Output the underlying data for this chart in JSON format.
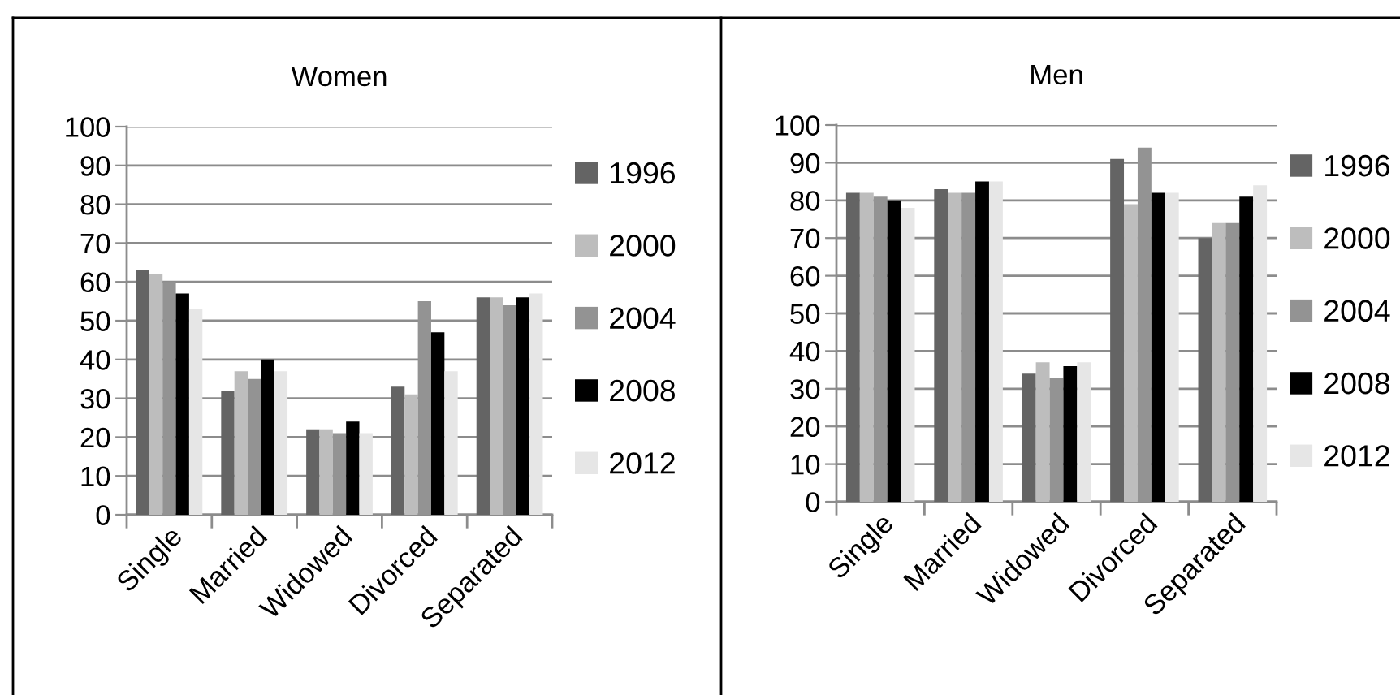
{
  "chart_data": [
    {
      "type": "bar",
      "title": "Women",
      "categories": [
        "Single",
        "Married",
        "Widowed",
        "Divorced",
        "Separated"
      ],
      "series": [
        {
          "name": "1996",
          "color": "#646464",
          "values": [
            63,
            32,
            22,
            33,
            56
          ]
        },
        {
          "name": "2000",
          "color": "#bdbdbd",
          "values": [
            62,
            37,
            22,
            31,
            56
          ]
        },
        {
          "name": "2004",
          "color": "#939393",
          "values": [
            60,
            35,
            21,
            55,
            54
          ]
        },
        {
          "name": "2008",
          "color": "#000000",
          "values": [
            57,
            40,
            24,
            47,
            56
          ]
        },
        {
          "name": "2012",
          "color": "#e6e6e6",
          "values": [
            53,
            37,
            21,
            37,
            57
          ]
        }
      ],
      "ylim": [
        0,
        100
      ],
      "yticks": [
        0,
        10,
        20,
        30,
        40,
        50,
        60,
        70,
        80,
        90,
        100
      ],
      "grid": "y",
      "legend": "right"
    },
    {
      "type": "bar",
      "title": "Men",
      "categories": [
        "Single",
        "Married",
        "Widowed",
        "Divorced",
        "Separated"
      ],
      "series": [
        {
          "name": "1996",
          "color": "#646464",
          "values": [
            82,
            83,
            34,
            91,
            70
          ]
        },
        {
          "name": "2000",
          "color": "#bdbdbd",
          "values": [
            82,
            82,
            37,
            79,
            74
          ]
        },
        {
          "name": "2004",
          "color": "#939393",
          "values": [
            81,
            82,
            33,
            94,
            74
          ]
        },
        {
          "name": "2008",
          "color": "#000000",
          "values": [
            80,
            85,
            36,
            82,
            81
          ]
        },
        {
          "name": "2012",
          "color": "#e6e6e6",
          "values": [
            78,
            85,
            37,
            82,
            84
          ]
        }
      ],
      "ylim": [
        0,
        100
      ],
      "yticks": [
        0,
        10,
        20,
        30,
        40,
        50,
        60,
        70,
        80,
        90,
        100
      ],
      "grid": "y",
      "legend": "right"
    }
  ]
}
